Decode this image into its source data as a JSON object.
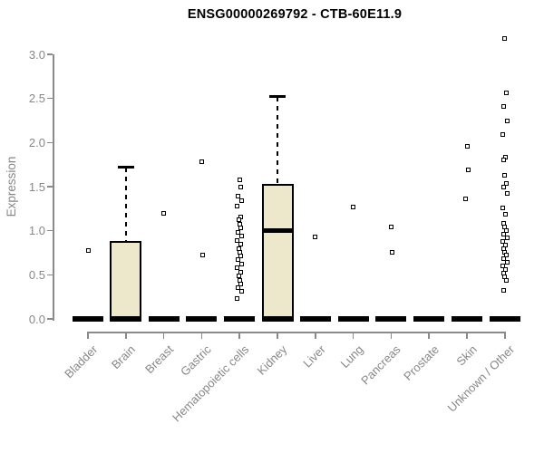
{
  "chart_data": {
    "type": "boxplot",
    "title": "ENSG00000269792 - CTB-60E11.9",
    "ylabel": "Expression",
    "xlabel": "",
    "ylim": [
      0,
      3.2
    ],
    "yticks": [
      "0.0",
      "0.5",
      "1.0",
      "1.5",
      "2.0",
      "2.5",
      "3.0"
    ],
    "ytick_values": [
      0,
      0.5,
      1.0,
      1.5,
      2.0,
      2.5,
      3.0
    ],
    "grid": false,
    "legend": "none",
    "box_fill_color": "#EDE7CB",
    "box_border_color": "#000000",
    "axis_color": "#8A8A8A",
    "label_color": "#878787",
    "categories": [
      {
        "label": "Bladder",
        "zero_bar": true,
        "points": [
          0.78
        ]
      },
      {
        "label": "Brain",
        "zero_bar": true,
        "box": {
          "q1": 0,
          "median": 0,
          "q3": 0.88,
          "whisker_high": 1.72
        },
        "points": []
      },
      {
        "label": "Breast",
        "zero_bar": true,
        "points": [
          1.2
        ]
      },
      {
        "label": "Gastric",
        "zero_bar": true,
        "points": [
          1.78,
          0.72
        ]
      },
      {
        "label": "Hematopoietic cells",
        "zero_bar": true,
        "points": [
          1.58,
          1.5,
          1.39,
          1.34,
          1.28,
          1.16,
          1.12,
          1.07,
          1.03,
          0.98,
          0.94,
          0.89,
          0.85,
          0.8,
          0.76,
          0.71,
          0.67,
          0.62,
          0.58,
          0.53,
          0.49,
          0.44,
          0.4,
          0.35,
          0.31,
          0.23
        ]
      },
      {
        "label": "Kidney",
        "zero_bar": true,
        "box": {
          "q1": 0,
          "median": 1.0,
          "q3": 1.53,
          "whisker_high": 2.52
        },
        "points": []
      },
      {
        "label": "Liver",
        "zero_bar": true,
        "points": [
          0.93
        ]
      },
      {
        "label": "Lung",
        "zero_bar": true,
        "points": [
          1.27
        ]
      },
      {
        "label": "Pancreas",
        "zero_bar": true,
        "points": [
          1.04,
          0.76
        ]
      },
      {
        "label": "Prostate",
        "zero_bar": true,
        "points": []
      },
      {
        "label": "Skin",
        "zero_bar": true,
        "points": [
          1.96,
          1.69,
          1.36
        ]
      },
      {
        "label": "Unknown / Other",
        "zero_bar": true,
        "points": [
          3.18,
          2.56,
          2.41,
          2.25,
          2.09,
          1.83,
          1.8,
          1.63,
          1.54,
          1.49,
          1.42,
          1.26,
          1.19,
          1.08,
          1.04,
          1.0,
          0.96,
          0.92,
          0.88,
          0.84,
          0.8,
          0.76,
          0.72,
          0.68,
          0.64,
          0.6,
          0.56,
          0.52,
          0.48,
          0.44,
          0.32
        ]
      }
    ]
  }
}
